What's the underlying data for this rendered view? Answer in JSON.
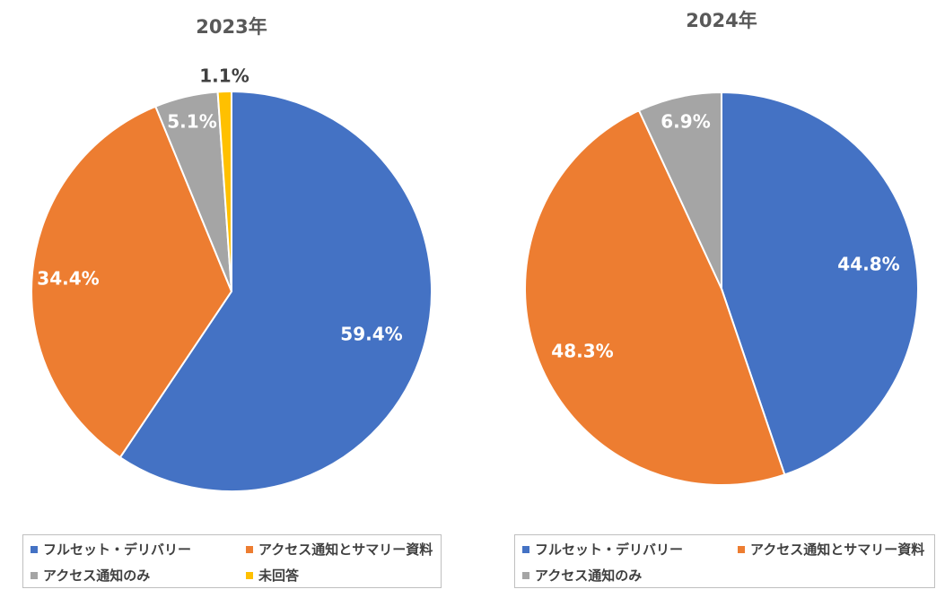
{
  "chart_data": [
    {
      "type": "pie",
      "title": "2023年",
      "categories": [
        "フルセット・デリバリー",
        "アクセス通知とサマリー資料",
        "アクセス通知のみ",
        "未回答"
      ],
      "values": [
        59.4,
        34.4,
        5.1,
        1.1
      ],
      "data_labels": [
        "59.4%",
        "34.4%",
        "5.1%",
        "1.1%"
      ],
      "colors": [
        "#4472C4",
        "#ED7D31",
        "#A5A5A5",
        "#FFC000"
      ],
      "legend": {
        "position": "bottom"
      }
    },
    {
      "type": "pie",
      "title": "2024年",
      "categories": [
        "フルセット・デリバリー",
        "アクセス通知とサマリー資料",
        "アクセス通知のみ"
      ],
      "values": [
        44.8,
        48.3,
        6.9
      ],
      "data_labels": [
        "44.8%",
        "48.3%",
        "6.9%"
      ],
      "colors": [
        "#4472C4",
        "#ED7D31",
        "#A5A5A5"
      ],
      "legend": {
        "position": "bottom"
      }
    }
  ]
}
